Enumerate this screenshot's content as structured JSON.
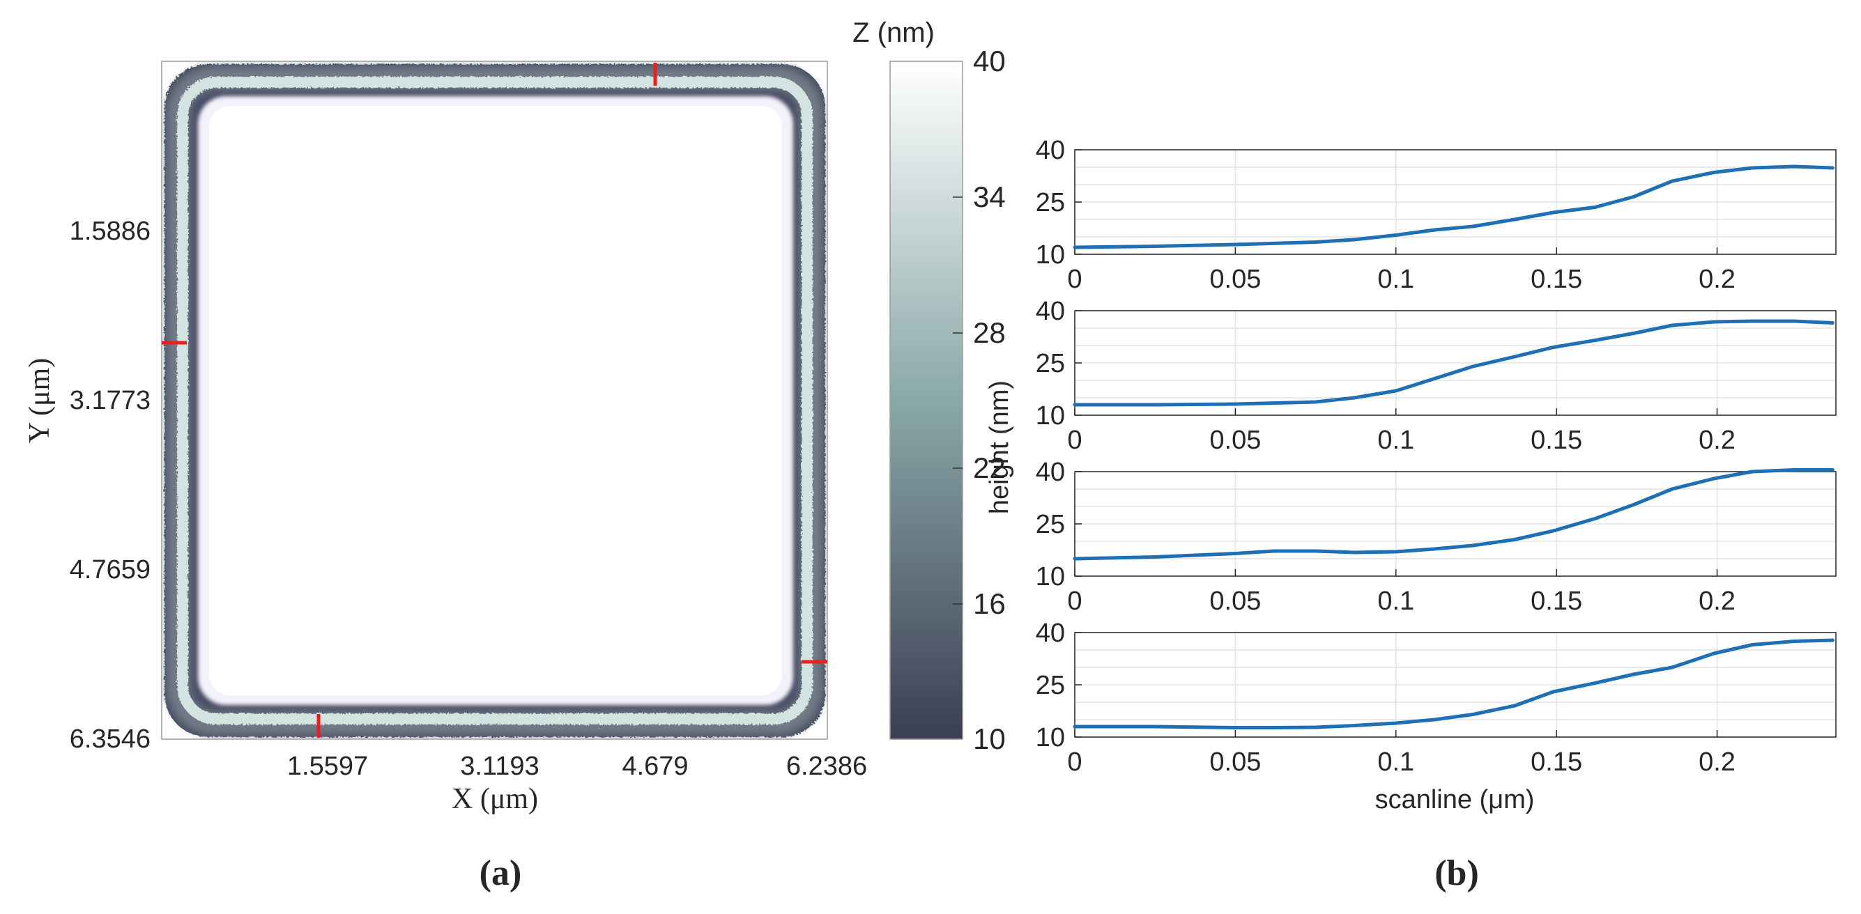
{
  "panel_a": {
    "x_label": "X (μm)",
    "y_label": "Y (μm)",
    "x_ticks": [
      "1.5597",
      "3.1193",
      "4.679",
      "6.2386"
    ],
    "y_ticks": [
      "1.5886",
      "3.1773",
      "4.7659",
      "6.3546"
    ],
    "colorbar": {
      "title": "Z (nm)",
      "ticks": [
        "40",
        "34",
        "28",
        "22",
        "16",
        "10"
      ],
      "colors": [
        "#3b3e54",
        "#8aa8a8",
        "#ffffff"
      ]
    },
    "marker_color": "#e8211c",
    "caption": "(a)"
  },
  "panel_b": {
    "y_label": "height (nm)",
    "x_label": "scanline (μm)",
    "caption": "(b)",
    "line_color": "#1f6fb4"
  },
  "chart_data": [
    {
      "type": "heatmap",
      "xlabel": "X (μm)",
      "ylabel": "Y (μm)",
      "xlim": [
        0,
        6.5
      ],
      "ylim": [
        0,
        6.3546
      ],
      "x_tick_values": [
        1.5597,
        3.1193,
        4.679,
        6.2386
      ],
      "y_tick_values": [
        1.5886,
        3.1773,
        4.7659,
        6.3546
      ],
      "colorbar_label": "Z (nm)",
      "colorbar_range": [
        10,
        40
      ],
      "colorbar_ticks": [
        10,
        16,
        22,
        28,
        34,
        40
      ]
    },
    {
      "type": "line",
      "xlabel": "scanline (μm)",
      "ylabel": "height (nm)",
      "xlim": [
        0,
        0.237
      ],
      "ylim": [
        10,
        40
      ],
      "x_ticks": [
        "0",
        "0.05",
        "0.1",
        "0.15",
        "0.2"
      ],
      "x_tick_values": [
        0,
        0.05,
        0.1,
        0.15,
        0.2
      ],
      "y_ticks": [
        "10",
        "25",
        "40"
      ],
      "y_tick_values": [
        10,
        25,
        40
      ],
      "grid": true,
      "series": [
        {
          "x": [
            0,
            0.025,
            0.05,
            0.075,
            0.087,
            0.1,
            0.112,
            0.124,
            0.137,
            0.149,
            0.162,
            0.174,
            0.186,
            0.199,
            0.211,
            0.224,
            0.236
          ],
          "values": [
            12,
            12.3,
            12.8,
            13.5,
            14.2,
            15.5,
            17.0,
            18.0,
            20.0,
            22.0,
            23.5,
            26.5,
            31.0,
            33.5,
            34.8,
            35.2,
            34.8
          ]
        },
        {
          "x": [
            0,
            0.025,
            0.05,
            0.075,
            0.087,
            0.1,
            0.112,
            0.124,
            0.137,
            0.149,
            0.162,
            0.174,
            0.186,
            0.199,
            0.211,
            0.224,
            0.236
          ],
          "values": [
            13,
            13,
            13.2,
            13.8,
            15.0,
            17.0,
            20.5,
            24.0,
            26.8,
            29.5,
            31.5,
            33.5,
            35.8,
            36.8,
            37.0,
            37.0,
            36.5
          ]
        },
        {
          "x": [
            0,
            0.025,
            0.05,
            0.062,
            0.075,
            0.087,
            0.1,
            0.112,
            0.124,
            0.137,
            0.149,
            0.162,
            0.174,
            0.186,
            0.199,
            0.211,
            0.224,
            0.236
          ],
          "values": [
            15,
            15.5,
            16.5,
            17.2,
            17.2,
            16.8,
            17.0,
            17.8,
            18.8,
            20.5,
            23.0,
            26.5,
            30.5,
            35.0,
            38.0,
            40.0,
            40.5,
            40.5
          ]
        },
        {
          "x": [
            0,
            0.025,
            0.05,
            0.062,
            0.075,
            0.087,
            0.1,
            0.112,
            0.124,
            0.137,
            0.149,
            0.162,
            0.174,
            0.186,
            0.199,
            0.211,
            0.224,
            0.236
          ],
          "values": [
            13,
            13,
            12.7,
            12.7,
            12.8,
            13.3,
            14.0,
            15.0,
            16.5,
            19.0,
            23.0,
            25.5,
            28.0,
            30.0,
            34.0,
            36.5,
            37.5,
            37.8
          ]
        }
      ]
    }
  ]
}
